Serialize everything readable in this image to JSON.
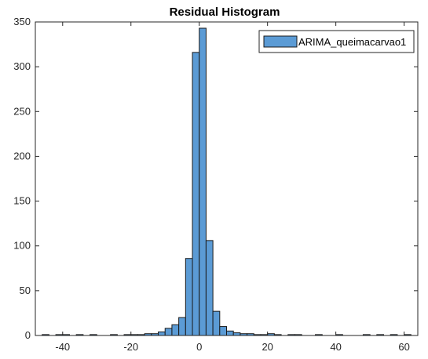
{
  "chart_data": {
    "type": "bar",
    "title": "Residual Histogram",
    "xlabel": "",
    "ylabel": "",
    "xlim": [
      -48,
      64
    ],
    "ylim": [
      0,
      350
    ],
    "xticks": [
      -40,
      -20,
      0,
      20,
      40,
      60
    ],
    "yticks": [
      0,
      50,
      100,
      150,
      200,
      250,
      300,
      350
    ],
    "grid": false,
    "legend_position": "top-right",
    "bin_width": 2,
    "bar_color": "#5b9bd5",
    "edge_color": "#1a1a1a",
    "series": [
      {
        "name": "ARIMA_queimacarvao1",
        "bins": [
          {
            "x0": -46,
            "x1": -44,
            "count": 1
          },
          {
            "x0": -44,
            "x1": -42,
            "count": 0
          },
          {
            "x0": -42,
            "x1": -40,
            "count": 1
          },
          {
            "x0": -40,
            "x1": -38,
            "count": 1
          },
          {
            "x0": -38,
            "x1": -36,
            "count": 0
          },
          {
            "x0": -36,
            "x1": -34,
            "count": 1
          },
          {
            "x0": -34,
            "x1": -32,
            "count": 0
          },
          {
            "x0": -32,
            "x1": -30,
            "count": 1
          },
          {
            "x0": -30,
            "x1": -28,
            "count": 0
          },
          {
            "x0": -28,
            "x1": -26,
            "count": 0
          },
          {
            "x0": -26,
            "x1": -24,
            "count": 1
          },
          {
            "x0": -24,
            "x1": -22,
            "count": 0
          },
          {
            "x0": -22,
            "x1": -20,
            "count": 1
          },
          {
            "x0": -20,
            "x1": -18,
            "count": 1
          },
          {
            "x0": -18,
            "x1": -16,
            "count": 1
          },
          {
            "x0": -16,
            "x1": -14,
            "count": 2
          },
          {
            "x0": -14,
            "x1": -12,
            "count": 2
          },
          {
            "x0": -12,
            "x1": -10,
            "count": 4
          },
          {
            "x0": -10,
            "x1": -8,
            "count": 8
          },
          {
            "x0": -8,
            "x1": -6,
            "count": 12
          },
          {
            "x0": -6,
            "x1": -4,
            "count": 20
          },
          {
            "x0": -4,
            "x1": -2,
            "count": 86
          },
          {
            "x0": -2,
            "x1": 0,
            "count": 316
          },
          {
            "x0": 0,
            "x1": 2,
            "count": 343
          },
          {
            "x0": 2,
            "x1": 4,
            "count": 106
          },
          {
            "x0": 4,
            "x1": 6,
            "count": 27
          },
          {
            "x0": 6,
            "x1": 8,
            "count": 10
          },
          {
            "x0": 8,
            "x1": 10,
            "count": 5
          },
          {
            "x0": 10,
            "x1": 12,
            "count": 3
          },
          {
            "x0": 12,
            "x1": 14,
            "count": 2
          },
          {
            "x0": 14,
            "x1": 16,
            "count": 2
          },
          {
            "x0": 16,
            "x1": 18,
            "count": 1
          },
          {
            "x0": 18,
            "x1": 20,
            "count": 1
          },
          {
            "x0": 20,
            "x1": 22,
            "count": 2
          },
          {
            "x0": 22,
            "x1": 24,
            "count": 1
          },
          {
            "x0": 24,
            "x1": 26,
            "count": 0
          },
          {
            "x0": 26,
            "x1": 28,
            "count": 1
          },
          {
            "x0": 28,
            "x1": 30,
            "count": 1
          },
          {
            "x0": 30,
            "x1": 32,
            "count": 0
          },
          {
            "x0": 32,
            "x1": 34,
            "count": 0
          },
          {
            "x0": 34,
            "x1": 36,
            "count": 1
          },
          {
            "x0": 36,
            "x1": 38,
            "count": 0
          },
          {
            "x0": 38,
            "x1": 40,
            "count": 0
          },
          {
            "x0": 40,
            "x1": 42,
            "count": 1
          },
          {
            "x0": 42,
            "x1": 44,
            "count": 0
          },
          {
            "x0": 44,
            "x1": 46,
            "count": 0
          },
          {
            "x0": 46,
            "x1": 48,
            "count": 0
          },
          {
            "x0": 48,
            "x1": 50,
            "count": 1
          },
          {
            "x0": 50,
            "x1": 52,
            "count": 0
          },
          {
            "x0": 52,
            "x1": 54,
            "count": 1
          },
          {
            "x0": 54,
            "x1": 56,
            "count": 0
          },
          {
            "x0": 56,
            "x1": 58,
            "count": 1
          },
          {
            "x0": 58,
            "x1": 60,
            "count": 0
          },
          {
            "x0": 60,
            "x1": 62,
            "count": 1
          }
        ]
      }
    ]
  }
}
